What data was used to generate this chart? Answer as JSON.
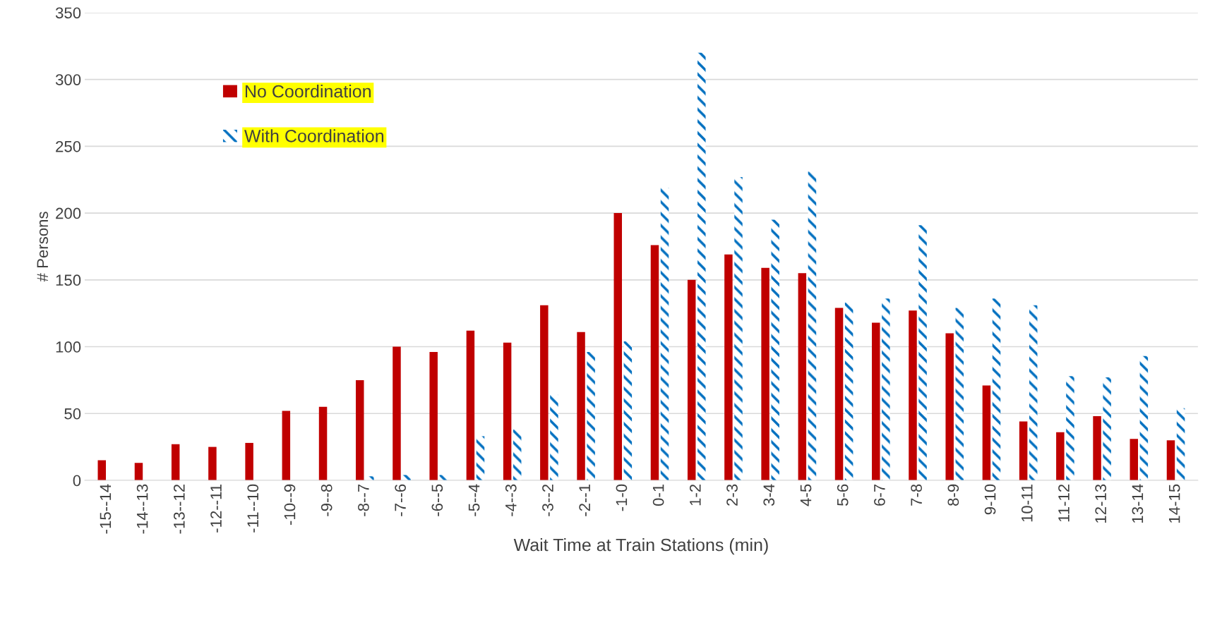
{
  "chart_data": {
    "type": "bar",
    "xlabel": "Wait Time at Train Stations (min)",
    "ylabel": "# Persons",
    "categories": [
      "-15--14",
      "-14--13",
      "-13--12",
      "-12--11",
      "-11--10",
      "-10--9",
      "-9--8",
      "-8--7",
      "-7--6",
      "-6--5",
      "-5--4",
      "-4--3",
      "-3--2",
      "-2--1",
      "-1-0",
      "0-1",
      "1-2",
      "2-3",
      "3-4",
      "4-5",
      "5-6",
      "6-7",
      "7-8",
      "8-9",
      "9-10",
      "10-11",
      "11-12",
      "12-13",
      "13-14",
      "14-15"
    ],
    "series": [
      {
        "name": "No Coordination",
        "color": "#c00000",
        "values": [
          15,
          13,
          27,
          25,
          28,
          52,
          55,
          75,
          100,
          96,
          112,
          103,
          131,
          111,
          200,
          176,
          150,
          169,
          159,
          155,
          129,
          118,
          127,
          110,
          71,
          44,
          36,
          48,
          31,
          30
        ]
      },
      {
        "name": "With Coordination",
        "color": "#0070c0",
        "values": [
          0,
          0,
          0,
          0,
          0,
          0,
          0,
          3,
          4,
          4,
          33,
          38,
          64,
          96,
          104,
          219,
          320,
          227,
          195,
          231,
          133,
          136,
          191,
          129,
          136,
          131,
          78,
          77,
          93,
          54
        ]
      }
    ],
    "ylim": [
      0,
      350
    ],
    "yticks": [
      0,
      50,
      100,
      150,
      200,
      250,
      300,
      350
    ],
    "grid": "y",
    "legend": "top left"
  }
}
